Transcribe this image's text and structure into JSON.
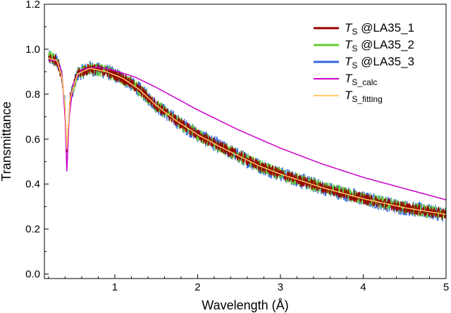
{
  "chart_data": {
    "type": "line",
    "xlabel": "Wavelength (Å)",
    "ylabel": "Transmittance",
    "xlim": [
      0.15,
      5.0
    ],
    "ylim": [
      -0.02,
      1.2
    ],
    "x_ticks": [
      1,
      2,
      3,
      4,
      5
    ],
    "y_ticks": [
      0.0,
      0.2,
      0.4,
      0.6,
      0.8,
      1.0,
      1.2
    ],
    "x_tick_labels": [
      "1",
      "2",
      "3",
      "4",
      "5"
    ],
    "y_tick_labels": [
      "0.0",
      "0.2",
      "0.4",
      "0.6",
      "0.8",
      "1.0",
      "1.2"
    ],
    "grid": false,
    "legend_position": "top-right",
    "series": [
      {
        "name_italic": "T",
        "name_sub": "S",
        "name_rest": " @LA35_1",
        "color": "#990000",
        "style": "noisy",
        "noise_amplitude": 0.025,
        "x": [
          0.2,
          0.3,
          0.36,
          0.4,
          0.42,
          0.46,
          0.55,
          0.7,
          0.9,
          1.1,
          1.3,
          1.5,
          1.75,
          2.0,
          2.25,
          2.5,
          2.75,
          3.0,
          3.25,
          3.5,
          3.75,
          4.0,
          4.25,
          4.5,
          4.75,
          5.0
        ],
        "y": [
          0.96,
          0.95,
          0.88,
          0.75,
          0.55,
          0.78,
          0.89,
          0.915,
          0.9,
          0.87,
          0.82,
          0.75,
          0.68,
          0.62,
          0.57,
          0.525,
          0.48,
          0.445,
          0.415,
          0.385,
          0.36,
          0.335,
          0.315,
          0.295,
          0.28,
          0.265
        ]
      },
      {
        "name_italic": "T",
        "name_sub": "S",
        "name_rest": " @LA35_2",
        "color": "#66cc33",
        "style": "noisy",
        "noise_amplitude": 0.03,
        "x": [
          0.2,
          0.3,
          0.36,
          0.4,
          0.42,
          0.46,
          0.55,
          0.7,
          0.9,
          1.1,
          1.3,
          1.5,
          1.75,
          2.0,
          2.25,
          2.5,
          2.75,
          3.0,
          3.25,
          3.5,
          3.75,
          4.0,
          4.25,
          4.5,
          4.75,
          5.0
        ],
        "y": [
          0.97,
          0.95,
          0.88,
          0.75,
          0.55,
          0.78,
          0.89,
          0.915,
          0.9,
          0.87,
          0.82,
          0.75,
          0.68,
          0.62,
          0.57,
          0.525,
          0.48,
          0.445,
          0.415,
          0.385,
          0.36,
          0.335,
          0.315,
          0.295,
          0.28,
          0.265
        ]
      },
      {
        "name_italic": "T",
        "name_sub": "S",
        "name_rest": " @LA35_3",
        "color": "#3366dd",
        "style": "noisy",
        "noise_amplitude": 0.035,
        "x": [
          0.2,
          0.3,
          0.36,
          0.4,
          0.42,
          0.46,
          0.55,
          0.7,
          0.9,
          1.1,
          1.3,
          1.5,
          1.75,
          2.0,
          2.25,
          2.5,
          2.75,
          3.0,
          3.25,
          3.5,
          3.75,
          4.0,
          4.25,
          4.5,
          4.75,
          5.0
        ],
        "y": [
          0.96,
          0.95,
          0.88,
          0.75,
          0.55,
          0.78,
          0.89,
          0.915,
          0.9,
          0.87,
          0.82,
          0.75,
          0.68,
          0.62,
          0.57,
          0.525,
          0.48,
          0.445,
          0.415,
          0.385,
          0.36,
          0.335,
          0.315,
          0.295,
          0.28,
          0.265
        ]
      },
      {
        "name_italic": "T",
        "name_sub": "S_calc",
        "name_rest": "",
        "color": "#cc00cc",
        "style": "smooth",
        "x": [
          0.2,
          0.3,
          0.36,
          0.4,
          0.42,
          0.45,
          0.5,
          0.6,
          0.8,
          1.0,
          1.25,
          1.5,
          1.75,
          2.0,
          2.5,
          3.0,
          3.5,
          4.0,
          4.5,
          5.0
        ],
        "y": [
          0.95,
          0.95,
          0.9,
          0.7,
          0.45,
          0.7,
          0.85,
          0.91,
          0.92,
          0.905,
          0.875,
          0.83,
          0.78,
          0.73,
          0.64,
          0.56,
          0.49,
          0.43,
          0.38,
          0.33
        ]
      },
      {
        "name_italic": "T",
        "name_sub": "S_fitting",
        "name_rest": "",
        "color": "#ffcc66",
        "style": "smooth",
        "x": [
          0.2,
          0.3,
          0.36,
          0.4,
          0.42,
          0.46,
          0.55,
          0.7,
          0.9,
          1.1,
          1.3,
          1.5,
          1.75,
          2.0,
          2.25,
          2.5,
          2.75,
          3.0,
          3.25,
          3.5,
          3.75,
          4.0,
          4.25,
          4.5,
          4.75,
          5.0
        ],
        "y": [
          0.96,
          0.95,
          0.88,
          0.75,
          0.55,
          0.78,
          0.89,
          0.915,
          0.9,
          0.87,
          0.82,
          0.75,
          0.68,
          0.62,
          0.57,
          0.525,
          0.48,
          0.445,
          0.415,
          0.385,
          0.36,
          0.335,
          0.315,
          0.295,
          0.28,
          0.265
        ]
      }
    ]
  }
}
